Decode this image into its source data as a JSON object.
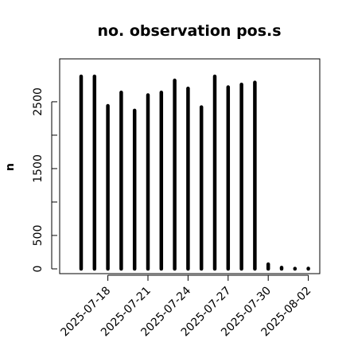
{
  "chart_data": {
    "type": "bar",
    "title": "no. observation pos.s",
    "xlabel": "",
    "ylabel": "n",
    "ylim": [
      0,
      3000
    ],
    "grid": false,
    "legend": "none",
    "y_ticks": [
      0,
      500,
      1500,
      2500
    ],
    "x_tick_labels": [
      {
        "label": "2025-07-18",
        "color": "#000000"
      },
      {
        "label": "2025-07-21",
        "color": "#000000"
      },
      {
        "label": "2025-07-24",
        "color": "#228B22"
      },
      {
        "label": "2025-07-27",
        "color": "#000000"
      },
      {
        "label": "2025-07-30",
        "color": "#000000"
      },
      {
        "label": "2025-08-02",
        "color": "#000000"
      }
    ],
    "categories": [
      "2025-07-16",
      "2025-07-17",
      "2025-07-18",
      "2025-07-19",
      "2025-07-20",
      "2025-07-21",
      "2025-07-22",
      "2025-07-23",
      "2025-07-24",
      "2025-07-25",
      "2025-07-26",
      "2025-07-27",
      "2025-07-28",
      "2025-07-29",
      "2025-07-30",
      "2025-07-31",
      "2025-08-01",
      "2025-08-02"
    ],
    "values": [
      2880,
      2880,
      2440,
      2640,
      2370,
      2600,
      2640,
      2820,
      2700,
      2420,
      2880,
      2720,
      2760,
      2790,
      70,
      20,
      5,
      0
    ],
    "bar_color": "#000000"
  }
}
